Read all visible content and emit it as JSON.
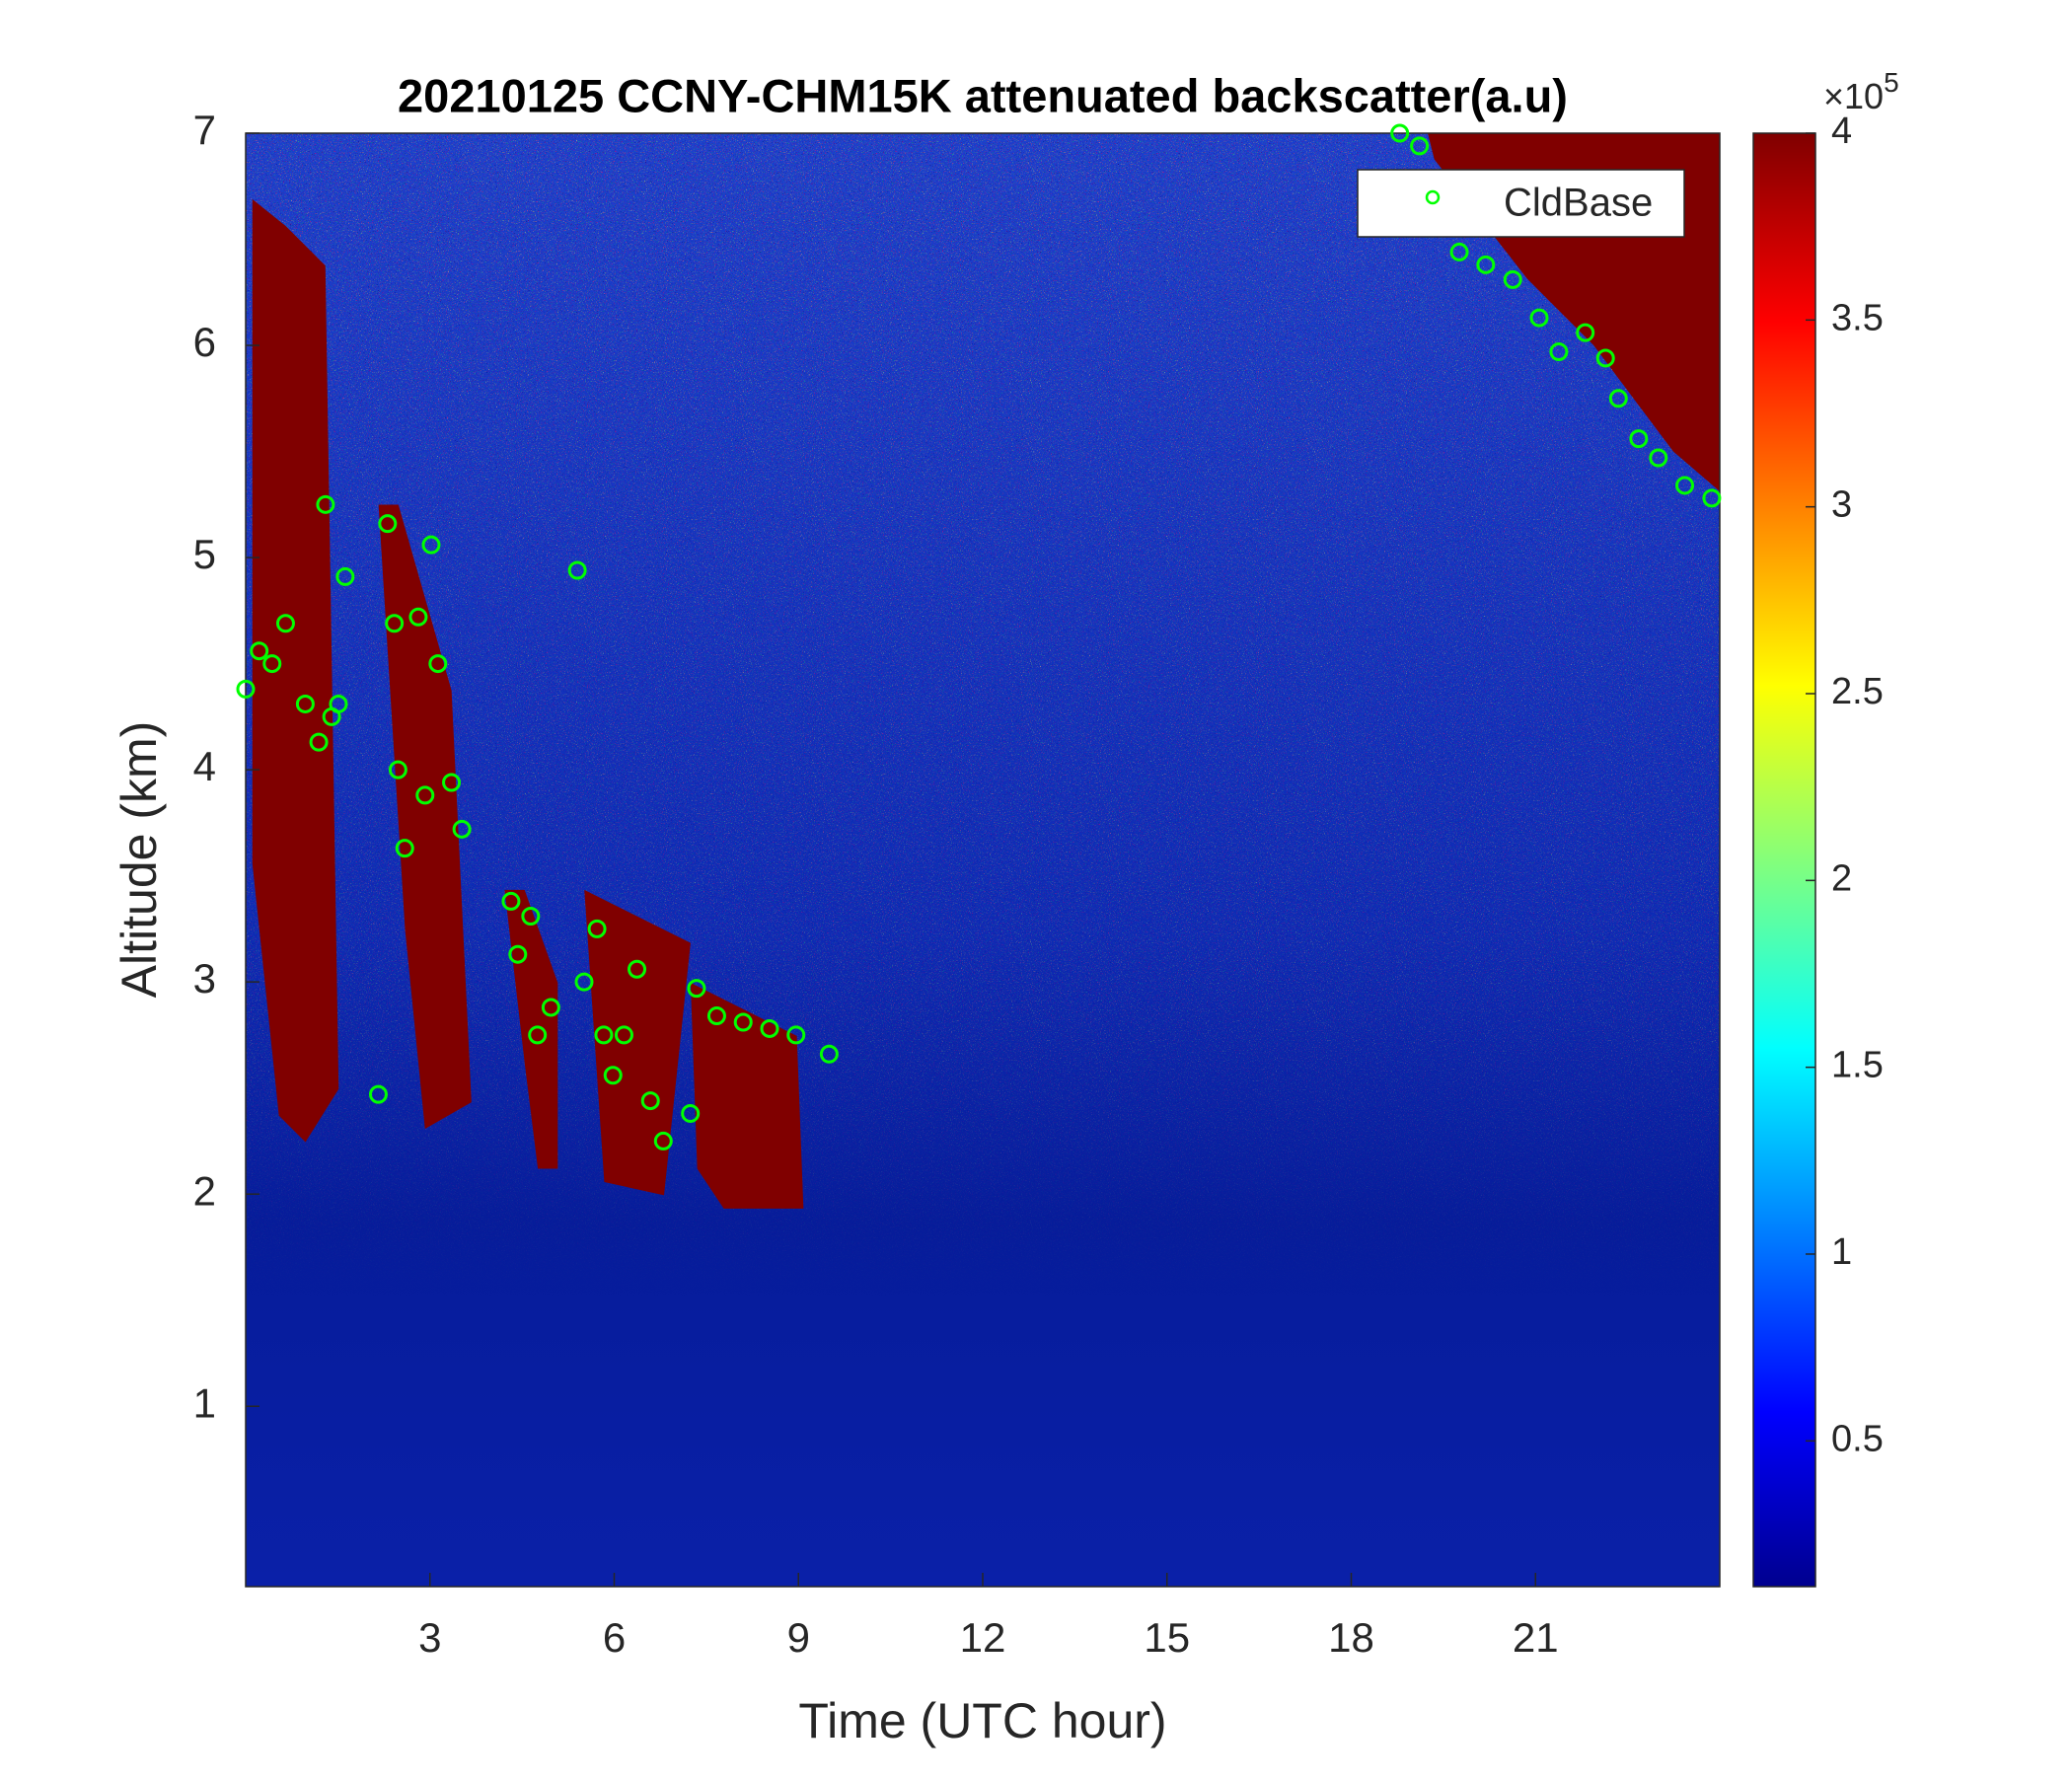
{
  "chart_data": {
    "type": "scatter",
    "title": "20210125 CCNY-CHM15K attenuated backscatter(a.u)",
    "xlabel": "Time (UTC hour)",
    "ylabel": "Altitude (km)",
    "xlim": [
      0,
      24
    ],
    "ylim": [
      0.15,
      7
    ],
    "xticks": [
      3,
      6,
      9,
      12,
      15,
      18,
      21
    ],
    "yticks": [
      1,
      2,
      3,
      4,
      5,
      6,
      7
    ],
    "legend": "top-right",
    "series": [
      {
        "name": "CldBase",
        "color": "#00ff00",
        "x": [
          0,
          0.22,
          0.43,
          0.65,
          0.97,
          1.19,
          1.4,
          1.3,
          1.62,
          1.51,
          2.16,
          2.31,
          2.42,
          2.48,
          2.59,
          2.81,
          2.92,
          3.02,
          3.13,
          3.35,
          3.52,
          4.32,
          4.43,
          4.64,
          4.75,
          4.97,
          5.4,
          5.51,
          5.72,
          5.83,
          5.98,
          6.16,
          6.37,
          6.59,
          6.8,
          7.34,
          7.24,
          7.67,
          8.1,
          8.53,
          8.96,
          9.5,
          18.79,
          19.11,
          19.76,
          20.19,
          20.63,
          21.06,
          21.38,
          21.81,
          22.14,
          22.35,
          22.68,
          23.0,
          23.43,
          23.87
        ],
        "values": [
          4.38,
          4.56,
          4.5,
          4.69,
          4.31,
          4.13,
          4.25,
          5.25,
          4.91,
          4.31,
          2.47,
          5.16,
          4.69,
          4.0,
          3.63,
          4.72,
          3.88,
          5.06,
          4.5,
          3.94,
          3.72,
          3.38,
          3.13,
          3.31,
          2.75,
          2.88,
          4.94,
          3.0,
          3.25,
          2.75,
          2.56,
          2.75,
          3.06,
          2.44,
          2.25,
          2.97,
          2.38,
          2.84,
          2.81,
          2.78,
          2.75,
          2.66,
          7.0,
          6.94,
          6.44,
          6.38,
          6.31,
          6.13,
          5.97,
          6.06,
          5.94,
          5.75,
          5.56,
          5.47,
          5.34,
          5.28
        ]
      }
    ],
    "colorbar": {
      "colormap": "jet",
      "clim": [
        0.11,
        4
      ],
      "ticks": [
        0.5,
        1,
        1.5,
        2,
        2.5,
        3,
        3.5,
        4
      ],
      "exponent_base": "×10",
      "exponent_power": "5"
    }
  }
}
